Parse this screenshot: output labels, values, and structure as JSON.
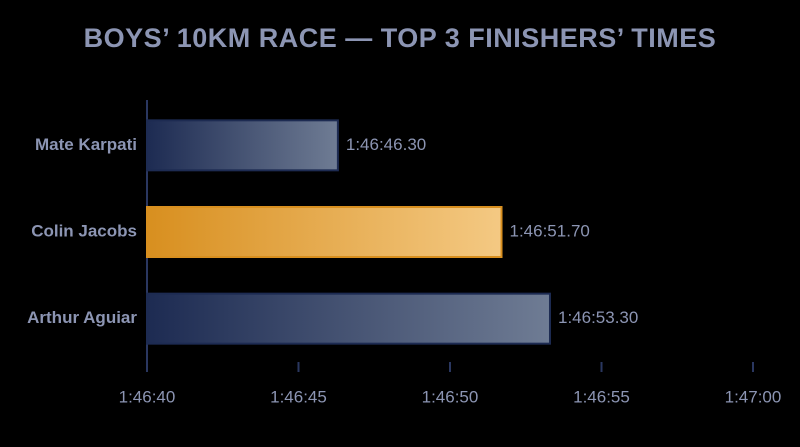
{
  "chart_data": {
    "type": "bar",
    "orientation": "horizontal",
    "title": "BOYS’ 10KM RACE — TOP 3 FINISHERS’ TIMES",
    "categories": [
      "Mate Karpati",
      "Colin Jacobs",
      "Arthur Aguiar"
    ],
    "values": [
      6406.3,
      6411.7,
      6413.3
    ],
    "value_labels": [
      "1:46:46.30",
      "1:46:51.70",
      "1:46:53.30"
    ],
    "colors": [
      "#1d2b52",
      "#d88f1f",
      "#1d2b52"
    ],
    "gradient_end_colors": [
      "#6f7c94",
      "#f4c983",
      "#6f7c94"
    ],
    "value_label_colors": [
      "#8c95b3",
      "#f0a83a",
      "#8c95b3"
    ],
    "xlim": [
      6400,
      6420
    ],
    "xticks": [
      {
        "value": 6400,
        "label": "1:46:40"
      },
      {
        "value": 6405,
        "label": "1:46:45"
      },
      {
        "value": 6410,
        "label": "1:46:50"
      },
      {
        "value": 6415,
        "label": "1:46:55"
      },
      {
        "value": 6420,
        "label": "1:47:00"
      }
    ],
    "grid": false
  }
}
